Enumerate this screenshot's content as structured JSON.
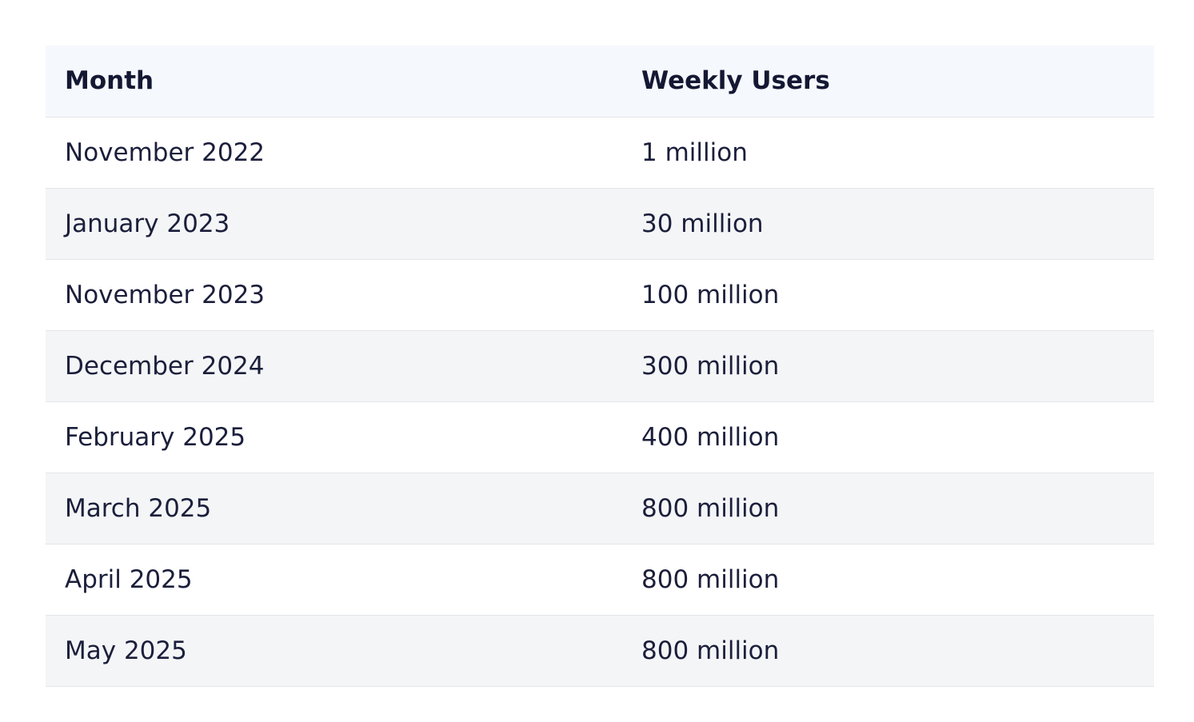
{
  "table": {
    "headers": {
      "month": "Month",
      "weekly_users": "Weekly Users"
    },
    "rows": [
      {
        "month": "November 2022",
        "weekly_users": "1 million"
      },
      {
        "month": "January 2023",
        "weekly_users": "30 million"
      },
      {
        "month": "November 2023",
        "weekly_users": "100 million"
      },
      {
        "month": "December 2024",
        "weekly_users": "300 million"
      },
      {
        "month": "February 2025",
        "weekly_users": "400 million"
      },
      {
        "month": "March 2025",
        "weekly_users": "800 million"
      },
      {
        "month": "April 2025",
        "weekly_users": "800 million"
      },
      {
        "month": "May 2025",
        "weekly_users": "800 million"
      }
    ]
  }
}
